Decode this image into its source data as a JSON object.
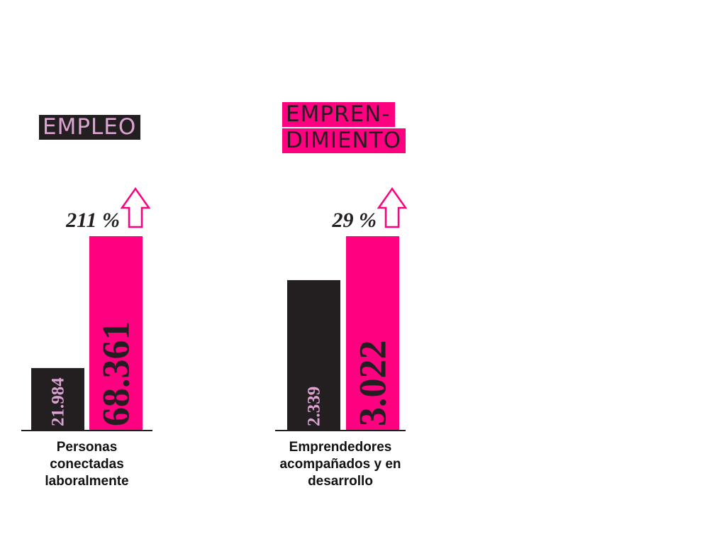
{
  "chart_data": [
    {
      "type": "bar",
      "title": "EMPLEO",
      "values": [
        21984,
        68361
      ],
      "value_labels": [
        "21.984",
        "68.361"
      ],
      "colors": [
        "#231f20",
        "#ff0080"
      ],
      "annotation": "211 %",
      "x_label": "Personas conectadas laboralmente"
    },
    {
      "type": "bar",
      "title": [
        "EMPREN-",
        "DIMIENTO"
      ],
      "values": [
        2339,
        3022
      ],
      "value_labels": [
        "2.339",
        "3.022"
      ],
      "colors": [
        "#231f20",
        "#ff0080"
      ],
      "annotation": "29 %",
      "x_label": "Emprendedores acompañados y en desarrollo"
    }
  ]
}
